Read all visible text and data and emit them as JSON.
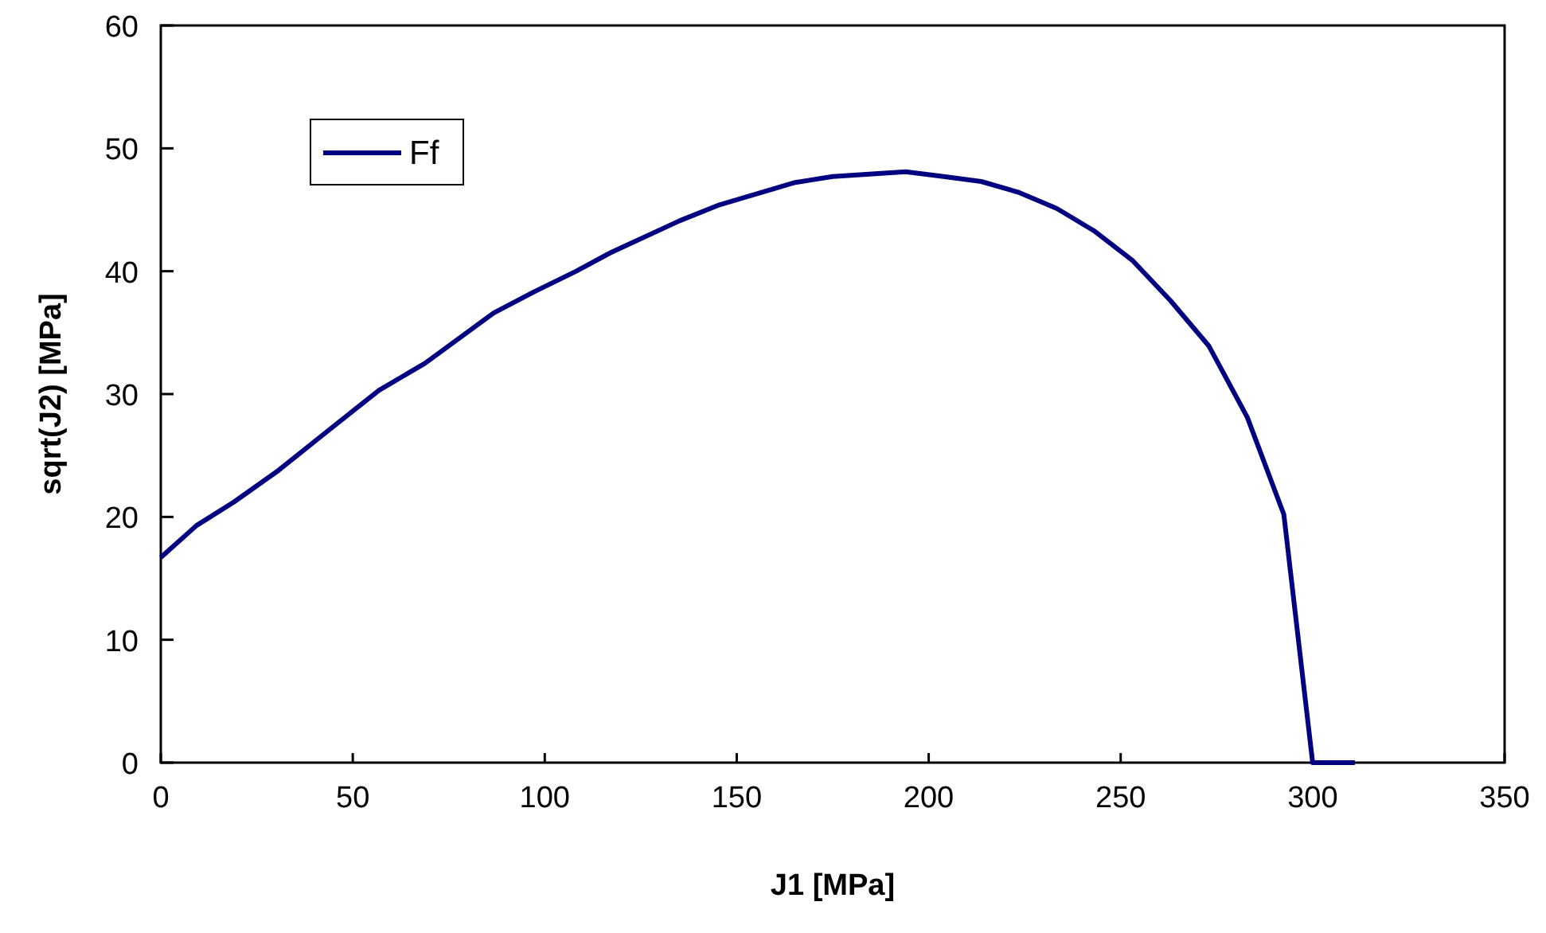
{
  "chart_data": {
    "type": "line",
    "xlabel": "J1 [MPa]",
    "ylabel": "sqrt(J2) [MPa]",
    "x": [
      0,
      9.3,
      19,
      30.7,
      43.9,
      56.8,
      68.8,
      86.7,
      97.1,
      108.2,
      117.1,
      135.1,
      145.5,
      164.9,
      175,
      194,
      203.9,
      213.7,
      223.6,
      233.4,
      243,
      253,
      263,
      273,
      283,
      292.5,
      300,
      311
    ],
    "series": [
      {
        "name": "Ff",
        "color": "#000080",
        "values": [
          16.7,
          19.3,
          21.2,
          23.8,
          27.1,
          30.3,
          32.5,
          36.6,
          38.3,
          40.0,
          41.5,
          44.1,
          45.4,
          47.2,
          47.7,
          48.1,
          47.7,
          47.3,
          46.4,
          45.1,
          43.3,
          40.9,
          37.6,
          33.9,
          28.1,
          20.2,
          0,
          0
        ]
      }
    ],
    "xlim": [
      0,
      350
    ],
    "xticks": [
      0,
      50,
      100,
      150,
      200,
      250,
      300,
      350
    ],
    "ylim": [
      0,
      60
    ],
    "yticks": [
      0,
      10,
      20,
      30,
      40,
      50,
      60
    ],
    "legend": "top left",
    "marker": "none",
    "line_style": "solid",
    "grid": false
  }
}
